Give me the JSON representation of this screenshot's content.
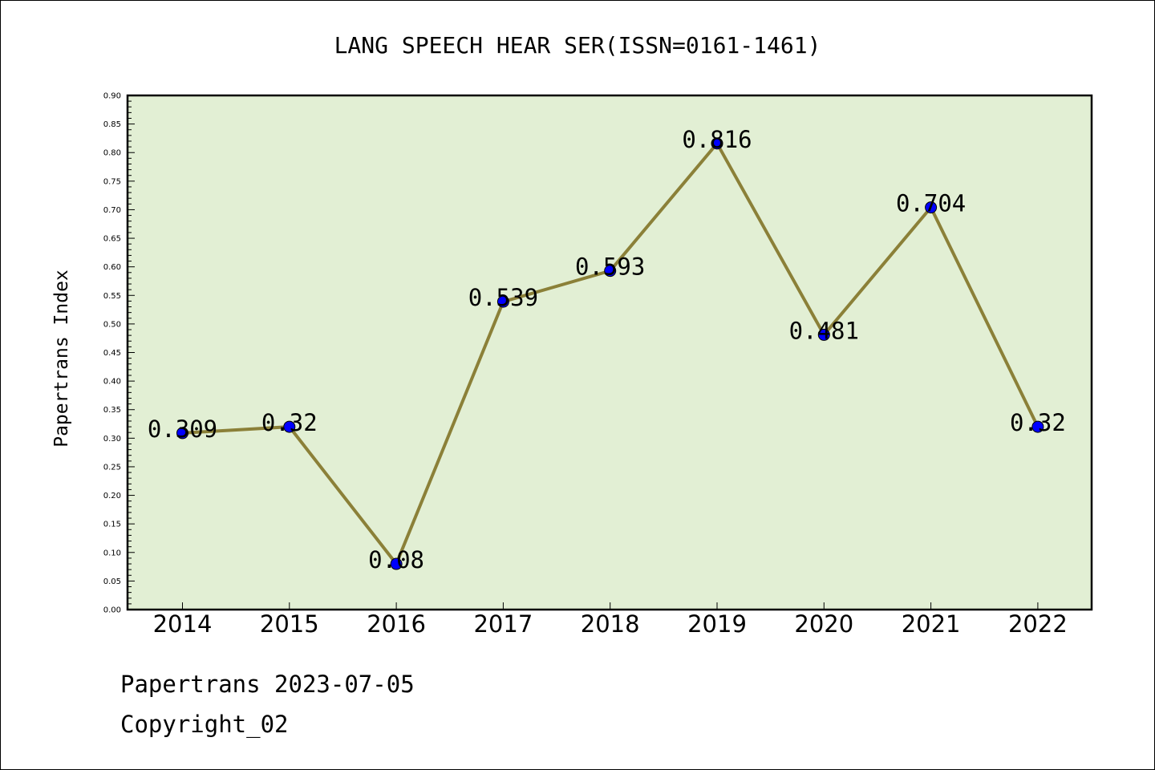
{
  "chart_data": {
    "type": "line",
    "title": "LANG SPEECH HEAR SER(ISSN=0161-1461)",
    "xlabel": "",
    "ylabel": "Papertrans Index",
    "categories": [
      "2014",
      "2015",
      "2016",
      "2017",
      "2018",
      "2019",
      "2020",
      "2021",
      "2022"
    ],
    "values": [
      0.309,
      0.32,
      0.08,
      0.539,
      0.593,
      0.816,
      0.481,
      0.704,
      0.32
    ],
    "data_labels": [
      "0.309",
      "0.32",
      "0.08",
      "0.539",
      "0.593",
      "0.816",
      "0.481",
      "0.704",
      "0.32"
    ],
    "ylim": [
      0,
      0.9
    ],
    "yticks": [
      "0.00",
      "0.05",
      "0.10",
      "0.15",
      "0.20",
      "0.25",
      "0.30",
      "0.35",
      "0.40",
      "0.45",
      "0.50",
      "0.55",
      "0.60",
      "0.65",
      "0.70",
      "0.75",
      "0.80",
      "0.85",
      "0.90"
    ],
    "grid": false,
    "colors": {
      "plot_background": "#e2efd4",
      "line": "#8b8038",
      "marker": "#0000ff"
    }
  },
  "footer": {
    "source": "Papertrans 2023-07-05",
    "copyright": "Copyright_02"
  }
}
